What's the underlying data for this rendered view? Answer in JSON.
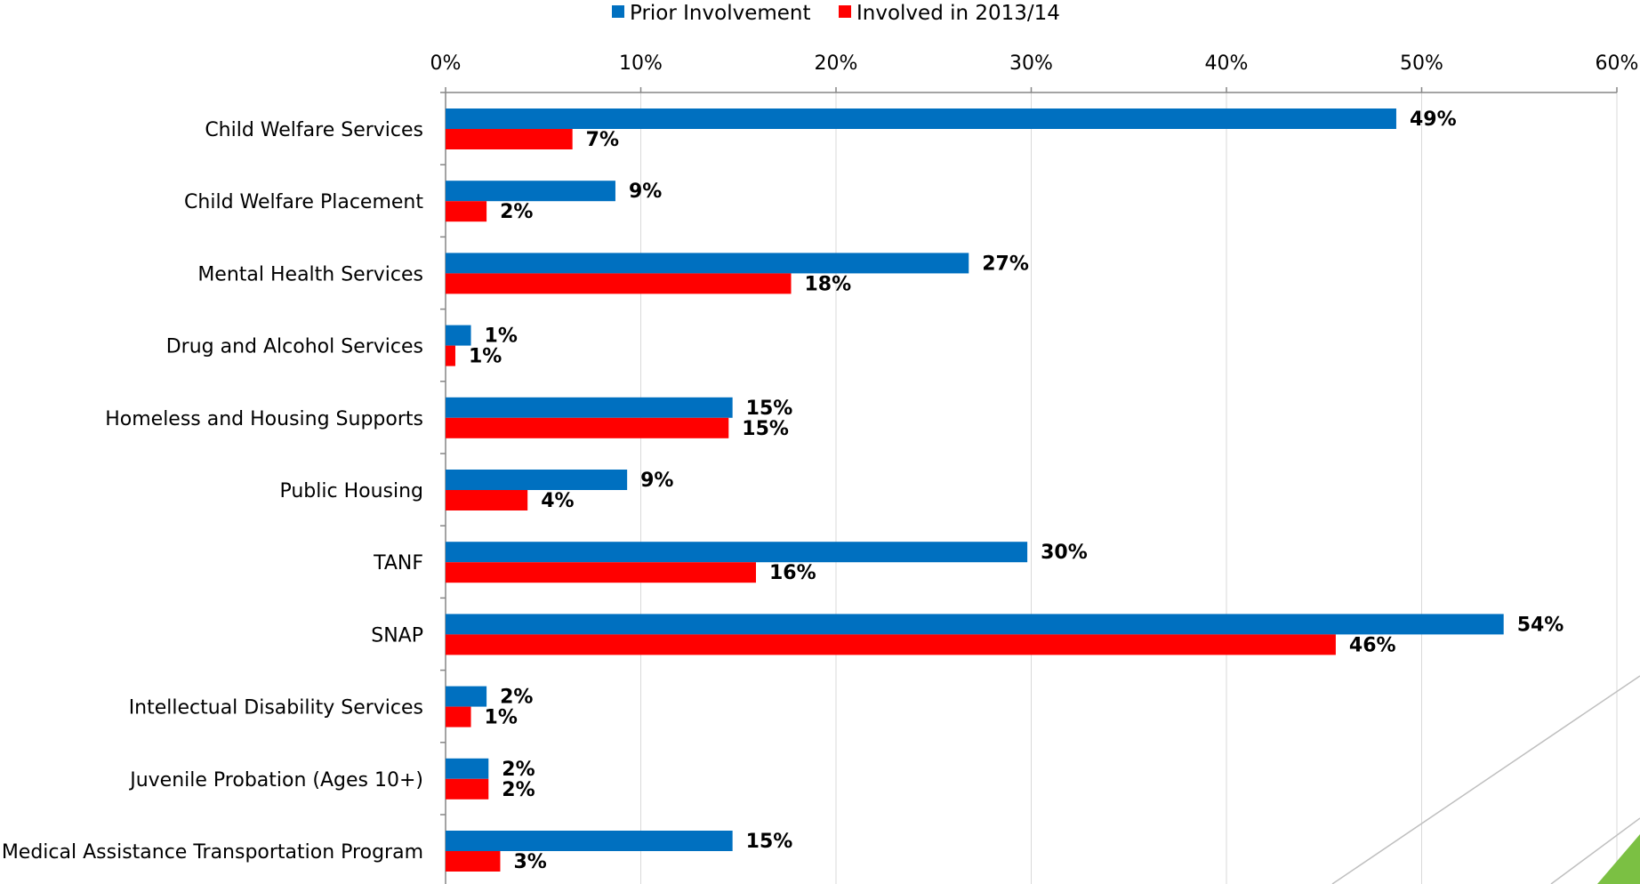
{
  "chart_data": {
    "type": "bar",
    "orientation": "horizontal",
    "categories": [
      "Child Welfare Services",
      "Child Welfare Placement",
      "Mental Health Services",
      "Drug and Alcohol Services",
      "Homeless and Housing Supports",
      "Public Housing",
      "TANF",
      "SNAP",
      "Intellectual Disability Services",
      "Juvenile Probation (Ages 10+)",
      "Medical Assistance Transportation Program"
    ],
    "series": [
      {
        "name": "Prior Involvement",
        "color": "#0070C0",
        "values": [
          48.7,
          8.7,
          26.8,
          1.3,
          14.7,
          9.3,
          29.8,
          54.2,
          2.1,
          2.2,
          14.7
        ],
        "labels": [
          "49%",
          "9%",
          "27%",
          "1%",
          "15%",
          "9%",
          "30%",
          "54%",
          "2%",
          "2%",
          "15%"
        ]
      },
      {
        "name": "Involved in 2013/14",
        "color": "#FF0000",
        "values": [
          6.5,
          2.1,
          17.7,
          0.5,
          14.5,
          4.2,
          15.9,
          45.6,
          1.3,
          2.2,
          2.8
        ],
        "labels": [
          "7%",
          "2%",
          "18%",
          "1%",
          "15%",
          "4%",
          "16%",
          "46%",
          "1%",
          "2%",
          "3%"
        ]
      }
    ],
    "xlim": [
      0,
      60
    ],
    "xticks": [
      0,
      10,
      20,
      30,
      40,
      50,
      60
    ],
    "xtick_labels": [
      "0%",
      "10%",
      "20%",
      "30%",
      "40%",
      "50%",
      "60%"
    ],
    "x_axis_position": "top",
    "grid": true,
    "legend_position": "top-center",
    "title": "",
    "xlabel": "",
    "ylabel": ""
  },
  "decoration": {
    "accent_color": "#7BC043",
    "line_color": "#BFBFBF"
  }
}
